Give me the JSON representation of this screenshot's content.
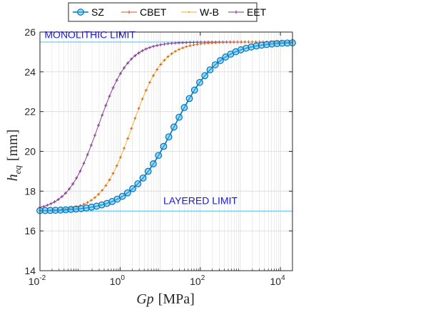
{
  "colors": {
    "sz": "#0072BD",
    "sz_fill": "#4DBEEE",
    "cbet": "#D95319",
    "wb": "#EDB120",
    "eet": "#7E2F8E",
    "limit_line": "#4DBEEE",
    "annotation": "#1A1AD2",
    "grid": "#D9D9D9",
    "axis": "#262626"
  },
  "legend": {
    "entries": [
      {
        "label": "SZ",
        "series": "sz",
        "marker": "circle"
      },
      {
        "label": "CBET",
        "series": "cbet",
        "marker": "plus"
      },
      {
        "label": "W-B",
        "series": "wb",
        "marker": "dot"
      },
      {
        "label": "EET",
        "series": "eet",
        "marker": "plus"
      }
    ]
  },
  "chart_data": {
    "type": "line",
    "xlabel_base": "Gp",
    "xlabel_unit": "[MPa]",
    "ylabel_base": "h",
    "ylabel_sub": "eq",
    "ylabel_unit": "[mm]",
    "xscale": "log",
    "xlim": [
      0.01,
      20000
    ],
    "ylim": [
      14,
      26
    ],
    "xticks": [
      {
        "base": "10",
        "exp": "-2",
        "value": 0.01
      },
      {
        "base": "10",
        "exp": "0",
        "value": 1
      },
      {
        "base": "10",
        "exp": "2",
        "value": 100
      },
      {
        "base": "10",
        "exp": "4",
        "value": 10000
      }
    ],
    "yticks": [
      "14",
      "16",
      "18",
      "20",
      "22",
      "24",
      "26"
    ],
    "grid": true,
    "legend_position": "top",
    "annotations": [
      {
        "text": "MONOLITHIC LIMIT",
        "x": 0.013,
        "y": 25.7
      },
      {
        "text": "LAYERED LIMIT",
        "x": 12,
        "y": 17.35
      }
    ],
    "reference_lines": [
      {
        "name": "monolithic",
        "y": 25.5
      },
      {
        "name": "layered",
        "y": 17.0
      }
    ],
    "sigmoid_form": {
      "h_layered": 17.0,
      "h_monolithic": 25.5,
      "series": [
        {
          "key": "sz",
          "name": "SZ",
          "log10_x_mid": 1.35,
          "width": 0.55
        },
        {
          "key": "cbet",
          "name": "CBET",
          "log10_x_mid": 0.3,
          "width": 0.38
        },
        {
          "key": "wb",
          "name": "W-B",
          "log10_x_mid": 0.3,
          "width": 0.38
        },
        {
          "key": "eet",
          "name": "EET",
          "log10_x_mid": -0.55,
          "width": 0.38
        }
      ]
    }
  }
}
